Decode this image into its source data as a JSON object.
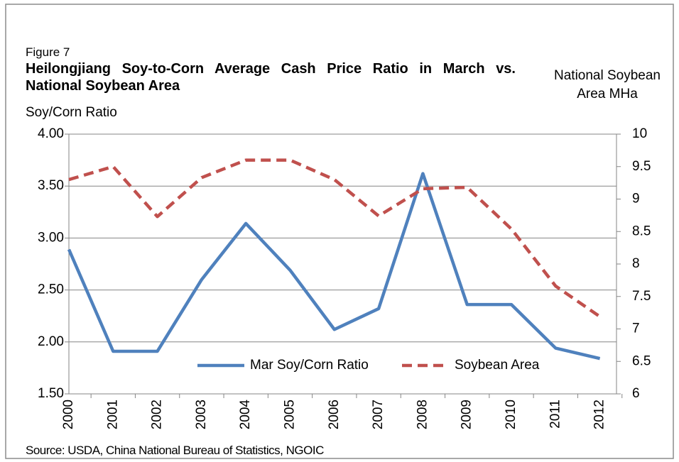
{
  "chart_data": {
    "type": "line",
    "figure_label": "Figure 7",
    "title": "Heilongjiang Soy-to-Corn Average Cash Price Ratio in March vs. National Soybean Area",
    "y_label": "Soy/Corn Ratio",
    "y2_label": "National Soybean Area MHa",
    "source": "Source:  USDA, China National Bureau of Statistics,  NGOIC",
    "categories": [
      "2000",
      "2001",
      "2002",
      "2003",
      "2004",
      "2005",
      "2006",
      "2007",
      "2008",
      "2009",
      "2010",
      "2011",
      "2012"
    ],
    "series": [
      {
        "name": "Mar Soy/Corn Ratio",
        "color": "#4f81bd",
        "dash": false,
        "values": [
          2.89,
          1.91,
          1.91,
          2.6,
          3.14,
          2.69,
          2.12,
          2.32,
          3.62,
          2.36,
          2.36,
          1.94,
          1.84
        ]
      },
      {
        "name": "Soybean Area",
        "color": "#c0504d",
        "dash": true,
        "axis": "y2",
        "values": [
          9.3,
          9.5,
          8.73,
          9.33,
          9.6,
          9.6,
          9.3,
          8.74,
          9.16,
          9.18,
          8.54,
          7.66,
          7.19
        ]
      }
    ],
    "ylim": [
      1.5,
      4
    ],
    "yticks": [
      {
        "value": 1.5,
        "label": "1.50"
      },
      {
        "value": 2,
        "label": "2.00"
      },
      {
        "value": 2.5,
        "label": "2.50"
      },
      {
        "value": 3,
        "label": "3.00"
      },
      {
        "value": 3.5,
        "label": "3.50"
      },
      {
        "value": 4,
        "label": "4.00"
      }
    ],
    "y2lim": [
      6,
      10
    ],
    "y2ticks": [
      6,
      6.5,
      7,
      7.5,
      8,
      8.5,
      9,
      9.5,
      10
    ],
    "grid": true
  }
}
